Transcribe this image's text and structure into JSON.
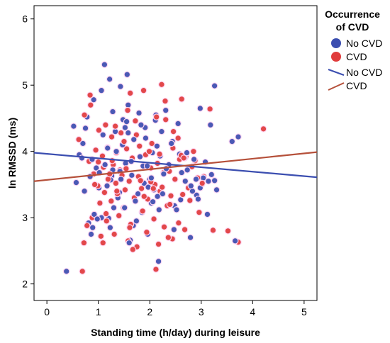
{
  "chart_data": {
    "type": "scatter",
    "title": "",
    "xlabel": "Standing time (h/day) during leisure",
    "ylabel": "ln RMSSD (ms)",
    "xlim": [
      -0.25,
      5.25
    ],
    "ylim": [
      1.75,
      6.2
    ],
    "x_ticks": [
      "0",
      "1",
      "2",
      "3",
      "4",
      "5"
    ],
    "x_tick_values": [
      0,
      1,
      2,
      3,
      4,
      5
    ],
    "y_ticks": [
      "2",
      "3",
      "4",
      "5",
      "6"
    ],
    "y_tick_values": [
      2,
      3,
      4,
      5,
      6
    ],
    "grid": false,
    "legend_placement": "right",
    "legend": {
      "title_line1": "Occurrence",
      "title_line2": "of CVD",
      "items": [
        {
          "label": "No CVD",
          "kind": "marker",
          "color": "#3b4eb0"
        },
        {
          "label": "CVD",
          "kind": "marker",
          "color": "#e03c3c"
        },
        {
          "label": "No CVD",
          "kind": "line",
          "color": "#3b4eb0"
        },
        {
          "label": "CVD",
          "kind": "line",
          "color": "#b5503a"
        }
      ]
    },
    "fit_lines": [
      {
        "name": "No CVD",
        "color": "#3b4eb0",
        "x": [
          -0.25,
          5.25
        ],
        "y": [
          3.98,
          3.61
        ]
      },
      {
        "name": "CVD",
        "color": "#b5503a",
        "x": [
          -0.25,
          5.25
        ],
        "y": [
          3.55,
          3.99
        ]
      }
    ],
    "series": [
      {
        "name": "No CVD",
        "color": "#3b4eb0",
        "x": [
          0.38,
          1.12,
          1.22,
          1.56,
          1.43,
          3.26,
          1.06,
          0.91,
          2.98,
          0.52,
          0.78,
          1.28,
          1.48,
          2.55,
          3.18,
          3.72,
          0.7,
          1.58,
          2.31,
          1.79,
          2.23,
          2.11,
          1.91,
          3.6,
          2.17,
          1.2,
          1.3,
          1.68,
          1.96,
          2.79,
          0.89,
          0.73,
          0.57,
          2.03,
          2.6,
          2.91,
          1.85,
          1.38,
          1.01,
          2.48,
          2.18,
          3.12,
          1.74,
          2.47,
          1.62,
          0.81,
          2.0,
          1.26,
          2.69,
          1.42,
          3.01,
          0.96,
          1.53,
          0.88,
          2.27,
          1.81,
          2.05,
          2.73,
          1.18,
          0.63,
          1.47,
          1.69,
          1.09,
          2.44,
          1.92,
          2.86,
          2.37,
          1.33,
          0.75,
          3.04,
          1.55,
          2.14,
          1.02,
          1.87,
          2.58,
          1.24,
          2.98,
          0.84,
          2.08,
          1.64,
          2.32,
          1.17,
          1.89,
          2.94,
          1.41,
          2.62,
          0.92,
          3.14,
          1.72,
          2.25,
          1.51,
          1.06,
          2.83,
          1.97,
          2.4,
          1.35,
          3.26,
          0.68,
          1.83,
          2.12,
          2.68,
          1.28,
          1.58,
          3.08,
          2.2,
          1.44,
          0.98,
          2.52,
          1.77,
          2.03,
          2.8,
          1.13,
          1.65,
          3.3,
          2.15,
          0.86,
          1.95,
          2.42,
          1.52,
          2.72,
          2.06,
          1.23,
          2.9,
          1.6,
          3.2,
          3.66
        ],
        "y": [
          2.19,
          5.31,
          5.09,
          5.16,
          4.98,
          4.99,
          4.92,
          4.78,
          4.65,
          4.38,
          4.52,
          4.6,
          4.48,
          4.42,
          4.4,
          4.22,
          4.12,
          4.7,
          4.62,
          4.58,
          4.3,
          4.47,
          4.36,
          4.15,
          2.34,
          2.99,
          3.15,
          2.88,
          2.75,
          2.7,
          2.85,
          3.4,
          3.53,
          3.22,
          3.27,
          3.34,
          3.08,
          3.3,
          3.45,
          3.18,
          3.12,
          3.05,
          2.95,
          2.82,
          2.66,
          2.92,
          3.58,
          3.63,
          3.55,
          3.7,
          3.5,
          3.75,
          3.82,
          3.88,
          3.66,
          3.92,
          3.98,
          3.72,
          4.05,
          3.95,
          4.1,
          4.18,
          4.25,
          4.15,
          4.2,
          3.88,
          3.8,
          4.3,
          4.35,
          3.6,
          4.45,
          4.08,
          3.68,
          3.78,
          3.96,
          3.57,
          3.45,
          3.62,
          3.42,
          3.85,
          3.74,
          3.48,
          3.52,
          3.28,
          3.38,
          3.68,
          3.05,
          3.55,
          3.25,
          3.36,
          3.15,
          3.0,
          3.4,
          3.46,
          3.2,
          4.0,
          3.56,
          3.9,
          4.4,
          4.55,
          3.9,
          3.72,
          4.28,
          3.84,
          3.93,
          3.58,
          2.98,
          3.12,
          3.36,
          3.6,
          3.48,
          3.8,
          3.64,
          3.42,
          3.32,
          2.75,
          3.78,
          4.12,
          4.36,
          3.98,
          3.24,
          2.85,
          3.58,
          2.62,
          3.65,
          2.65
        ]
      },
      {
        "name": "CVD",
        "color": "#e03c3c",
        "x": [
          2.23,
          1.88,
          1.62,
          2.3,
          2.62,
          3.17,
          4.21,
          3.52,
          0.72,
          0.69,
          2.12,
          3.72,
          3.23,
          0.84,
          0.73,
          1.01,
          1.14,
          1.47,
          0.62,
          0.95,
          1.26,
          1.18,
          1.35,
          1.74,
          2.04,
          2.45,
          2.7,
          2.88,
          1.55,
          1.08,
          0.82,
          1.66,
          1.92,
          2.15,
          2.38,
          2.58,
          2.82,
          3.05,
          1.29,
          1.42,
          0.91,
          2.02,
          2.27,
          2.49,
          1.78,
          1.6,
          1.21,
          2.1,
          2.75,
          1.34,
          0.99,
          1.84,
          2.2,
          1.52,
          1.12,
          2.64,
          2.41,
          1.96,
          1.7,
          1.03,
          1.25,
          2.34,
          1.49,
          1.86,
          2.52,
          2.96,
          1.4,
          0.88,
          2.08,
          1.16,
          1.63,
          2.28,
          2.68,
          1.94,
          1.31,
          1.05,
          2.44,
          1.58,
          2.17,
          1.75,
          1.09,
          2.36,
          0.78,
          1.67,
          2.56,
          1.19,
          1.46,
          2.24,
          1.82,
          1.37,
          2.02,
          2.93,
          0.93,
          1.54,
          1.27,
          2.61,
          1.99,
          1.1,
          2.46,
          1.72,
          2.13,
          1.57,
          0.85,
          2.31,
          1.44,
          1.8,
          2.66,
          1.22,
          3.02,
          1.36,
          1.89,
          2.39,
          1.15,
          2.78,
          1.61,
          2.07,
          1.0,
          2.19,
          1.5,
          1.33,
          2.55,
          2.85
        ],
        "y": [
          5.01,
          4.92,
          4.88,
          4.76,
          4.79,
          4.64,
          4.34,
          2.8,
          2.62,
          2.19,
          2.22,
          2.63,
          2.81,
          4.85,
          4.55,
          4.32,
          4.4,
          4.1,
          4.18,
          4.02,
          4.22,
          4.06,
          3.98,
          4.25,
          4.12,
          4.05,
          3.92,
          3.86,
          4.04,
          3.93,
          3.85,
          3.9,
          3.95,
          3.82,
          3.7,
          3.88,
          3.77,
          3.62,
          3.8,
          3.72,
          3.66,
          3.75,
          3.68,
          3.58,
          3.62,
          3.55,
          3.6,
          3.5,
          3.45,
          3.52,
          3.48,
          3.44,
          3.4,
          3.42,
          3.38,
          3.35,
          3.33,
          3.28,
          3.3,
          3.22,
          3.25,
          3.18,
          3.15,
          3.1,
          3.12,
          3.08,
          3.03,
          3.0,
          2.98,
          2.95,
          2.9,
          2.86,
          2.82,
          2.78,
          2.75,
          2.72,
          2.68,
          2.65,
          2.6,
          2.56,
          2.62,
          2.7,
          2.88,
          2.52,
          2.92,
          3.58,
          3.64,
          3.46,
          3.56,
          3.36,
          3.54,
          3.6,
          3.5,
          3.74,
          3.86,
          3.94,
          4.0,
          3.76,
          4.3,
          4.46,
          4.52,
          4.62,
          4.7,
          4.48,
          4.28,
          4.08,
          3.9,
          3.66,
          3.52,
          3.4,
          3.32,
          3.2,
          3.06,
          3.26,
          2.85,
          3.44,
          3.84,
          3.96,
          4.15,
          4.38,
          4.2,
          4.0
        ]
      }
    ]
  }
}
